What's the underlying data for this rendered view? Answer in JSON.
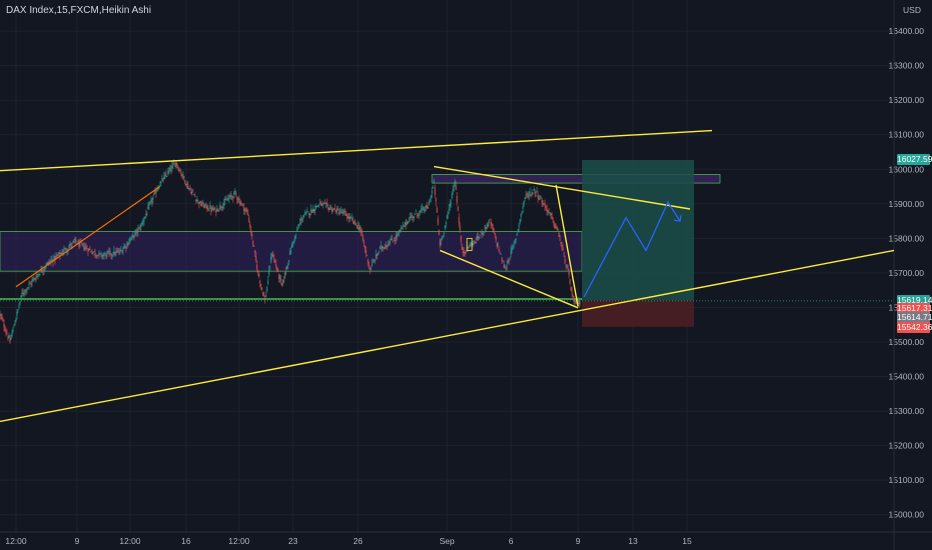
{
  "chart_title": {
    "symbol": "DAX Index",
    "interval": "15",
    "source": "FXCM",
    "style": "Heikin Ashi",
    "sep": ", "
  },
  "currency": "USD",
  "colors": {
    "background": "#131722",
    "grid": "#1e222d",
    "up_candle": "#26a69a",
    "down_candle": "#ef5350",
    "trendline": "#ffeb3b",
    "zone_fill": "#2a1f4d",
    "zone_border": "#4caf50",
    "target_fill": "#1b4d49",
    "stop_fill": "#4a1f24",
    "projection": "#2962ff",
    "axis_text": "#b2b5be",
    "orange_line": "#ff6d00"
  },
  "price_badges": [
    {
      "label": "16027.59",
      "price": 16027.59,
      "color": "#26a69a"
    },
    {
      "label": "15619.14",
      "price": 15619.14,
      "color": "#26a69a"
    },
    {
      "label": "15617.31",
      "price": 15596,
      "color": "#ef5350"
    },
    {
      "label": "15614.71",
      "price": 15572,
      "color": "#787b86"
    },
    {
      "label": "15542.36",
      "price": 15542.36,
      "color": "#ef5350"
    }
  ],
  "chart_data": {
    "type": "candlestick",
    "style": "Heikin Ashi",
    "y_axis": {
      "ylim": [
        14950,
        16490
      ],
      "ticks": [
        15000,
        15100,
        15200,
        15300,
        15400,
        15500,
        15600,
        15700,
        15800,
        15900,
        16000,
        16100,
        16200,
        16300,
        16400
      ],
      "tick_labels": [
        "15000.00",
        "15100.00",
        "15200.00",
        "15300.00",
        "15400.00",
        "15500.00",
        "15600.00",
        "15700.00",
        "15800.00",
        "15900.00",
        "16000.00",
        "16100.00",
        "16200.00",
        "16300.00",
        "16400.00"
      ]
    },
    "x_axis": {
      "index_range": [
        0,
        894
      ],
      "ticks": [
        {
          "label": "12:00",
          "t": 16
        },
        {
          "label": "9",
          "t": 77
        },
        {
          "label": "12:00",
          "t": 130
        },
        {
          "label": "16",
          "t": 186
        },
        {
          "label": "12:00",
          "t": 239
        },
        {
          "label": "23",
          "t": 293
        },
        {
          "label": "26",
          "t": 358
        },
        {
          "label": "Sep",
          "t": 447
        },
        {
          "label": "6",
          "t": 511
        },
        {
          "label": "9",
          "t": 578
        },
        {
          "label": "13",
          "t": 633
        },
        {
          "label": "15",
          "t": 687
        }
      ]
    },
    "price_path": [
      {
        "t": 0,
        "p": 15580
      },
      {
        "t": 10,
        "p": 15500
      },
      {
        "t": 22,
        "p": 15640
      },
      {
        "t": 45,
        "p": 15720
      },
      {
        "t": 75,
        "p": 15790
      },
      {
        "t": 100,
        "p": 15750
      },
      {
        "t": 120,
        "p": 15760
      },
      {
        "t": 140,
        "p": 15830
      },
      {
        "t": 158,
        "p": 15950
      },
      {
        "t": 176,
        "p": 16020
      },
      {
        "t": 188,
        "p": 15950
      },
      {
        "t": 200,
        "p": 15900
      },
      {
        "t": 215,
        "p": 15880
      },
      {
        "t": 235,
        "p": 15930
      },
      {
        "t": 248,
        "p": 15870
      },
      {
        "t": 258,
        "p": 15700
      },
      {
        "t": 265,
        "p": 15620
      },
      {
        "t": 272,
        "p": 15760
      },
      {
        "t": 282,
        "p": 15660
      },
      {
        "t": 292,
        "p": 15780
      },
      {
        "t": 302,
        "p": 15860
      },
      {
        "t": 320,
        "p": 15900
      },
      {
        "t": 345,
        "p": 15870
      },
      {
        "t": 360,
        "p": 15830
      },
      {
        "t": 370,
        "p": 15710
      },
      {
        "t": 380,
        "p": 15770
      },
      {
        "t": 395,
        "p": 15800
      },
      {
        "t": 410,
        "p": 15860
      },
      {
        "t": 428,
        "p": 15890
      },
      {
        "t": 434,
        "p": 15960
      },
      {
        "t": 440,
        "p": 15780
      },
      {
        "t": 448,
        "p": 15870
      },
      {
        "t": 455,
        "p": 15970
      },
      {
        "t": 462,
        "p": 15760
      },
      {
        "t": 475,
        "p": 15790
      },
      {
        "t": 490,
        "p": 15850
      },
      {
        "t": 505,
        "p": 15710
      },
      {
        "t": 515,
        "p": 15790
      },
      {
        "t": 525,
        "p": 15920
      },
      {
        "t": 535,
        "p": 15940
      },
      {
        "t": 548,
        "p": 15880
      },
      {
        "t": 558,
        "p": 15820
      },
      {
        "t": 568,
        "p": 15700
      },
      {
        "t": 574,
        "p": 15610
      },
      {
        "t": 580,
        "p": 15619
      }
    ],
    "levels": {
      "last": 15619.14,
      "target": 16027.59,
      "stop": 15542.36
    },
    "zones": [
      {
        "t0": 0,
        "t1": 582,
        "p_top": 15820,
        "p_bot": 15705
      },
      {
        "t0": 432,
        "t1": 720,
        "p_top": 15985,
        "p_bot": 15960
      },
      {
        "t0": 0,
        "t1": 582,
        "p_top": 15626,
        "p_bot": 15623
      }
    ],
    "risk_reward": {
      "t0": 582,
      "t1": 694,
      "entry": 15621,
      "target": 16027,
      "stop": 15544
    },
    "trendlines": [
      {
        "name": "upper-channel",
        "points": [
          [
            0,
            15996
          ],
          [
            712,
            16112
          ]
        ]
      },
      {
        "name": "lower-channel",
        "points": [
          [
            0,
            15270
          ],
          [
            894,
            15765
          ]
        ]
      },
      {
        "name": "wedge-top",
        "points": [
          [
            434,
            16008
          ],
          [
            690,
            15885
          ]
        ]
      },
      {
        "name": "wedge-bottom",
        "points": [
          [
            440,
            15765
          ],
          [
            578,
            15599
          ]
        ]
      },
      {
        "name": "wedge-drop",
        "points": [
          [
            556,
            15955
          ],
          [
            578,
            15603
          ]
        ]
      }
    ],
    "orange_trend": [
      [
        16,
        15660
      ],
      [
        160,
        15950
      ]
    ],
    "projection": [
      [
        584,
        15630
      ],
      [
        626,
        15860
      ],
      [
        646,
        15765
      ],
      [
        668,
        15905
      ],
      [
        680,
        15850
      ]
    ]
  }
}
